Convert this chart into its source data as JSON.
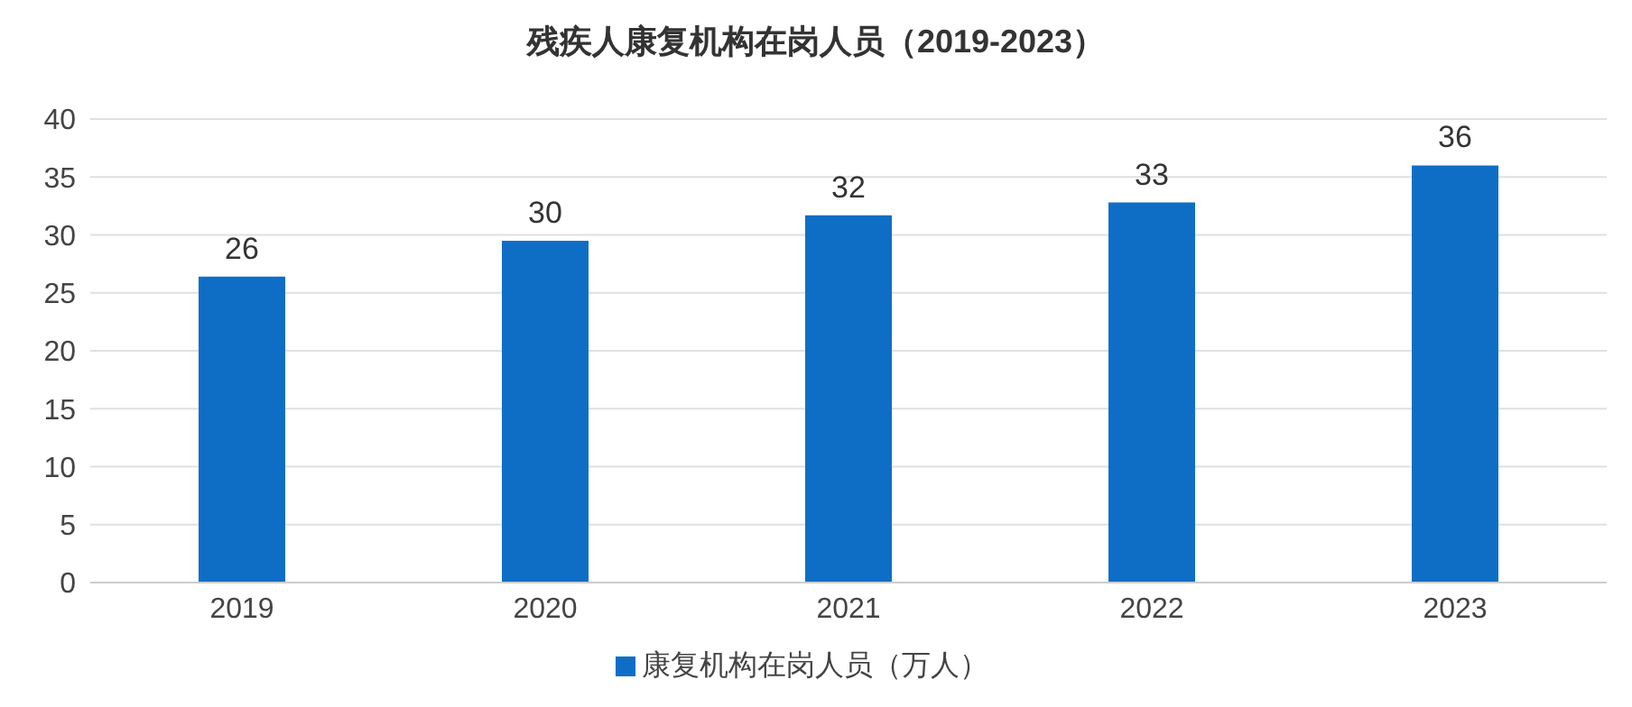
{
  "chart_data": {
    "type": "bar",
    "title": "残疾人康复机构在岗人员（2019-2023）",
    "categories": [
      "2019",
      "2020",
      "2021",
      "2022",
      "2023"
    ],
    "series": [
      {
        "name": "康复机构在岗人员（万人）",
        "color": "#0e6ec6",
        "values": [
          26.4,
          29.5,
          31.7,
          32.8,
          36.0
        ],
        "value_labels": [
          "26",
          "30",
          "32",
          "33",
          "36"
        ]
      }
    ],
    "ylim": [
      0,
      40
    ],
    "yticks": [
      0,
      5,
      10,
      15,
      20,
      25,
      30,
      35,
      40
    ],
    "grid": "y",
    "legend": "bottom"
  }
}
